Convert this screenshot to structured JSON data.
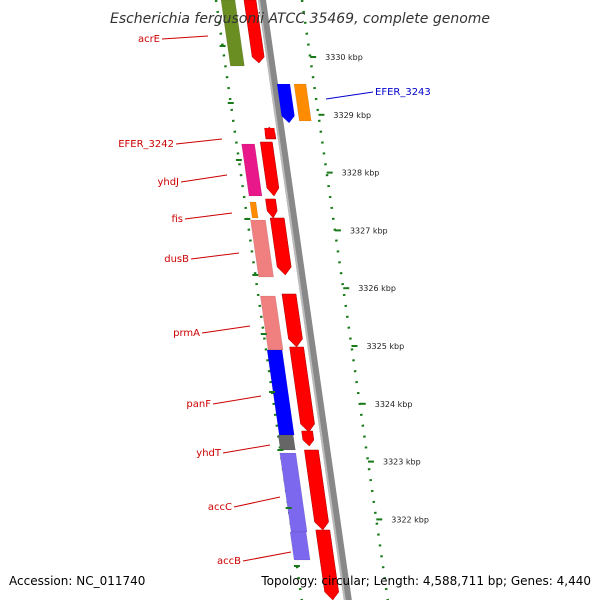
{
  "title": "Escherichia fergusonii ATCC 35469, complete genome",
  "footer": {
    "accession": "Accession: NC_011740",
    "topology": "Topology: circular; Length: 4,588,711 bp; Genes: 4,440"
  },
  "colors": {
    "backbone": "#888888",
    "tick": "#1a7a1a",
    "cds_arrow": "#ff0000",
    "label_red": "#cc0000",
    "label_blue": "#0000cc"
  },
  "scale_ticks": [
    {
      "label": "3330 kbp",
      "kbp": 3330
    },
    {
      "label": "3329 kbp",
      "kbp": 3329
    },
    {
      "label": "3328 kbp",
      "kbp": 3328
    },
    {
      "label": "3327 kbp",
      "kbp": 3327
    },
    {
      "label": "3326 kbp",
      "kbp": 3326
    },
    {
      "label": "3325 kbp",
      "kbp": 3325
    },
    {
      "label": "3324 kbp",
      "kbp": 3324
    },
    {
      "label": "3323 kbp",
      "kbp": 3323
    },
    {
      "label": "3322 kbp",
      "kbp": 3322
    }
  ],
  "genes": [
    {
      "name": "acrE",
      "color": "#6b8e23",
      "strand": "forward"
    },
    {
      "name": "EFER_3243",
      "color": "#ff8c00",
      "strand": "reverse"
    },
    {
      "name": "EFER_3242",
      "color": "#ff0000",
      "strand": "forward"
    },
    {
      "name": "yhdJ",
      "color": "#e8178a",
      "strand": "forward"
    },
    {
      "name": "fis",
      "color": "#ff8c00",
      "strand": "forward"
    },
    {
      "name": "dusB",
      "color": "#f08080",
      "strand": "forward"
    },
    {
      "name": "prmA",
      "color": "#f08080",
      "strand": "forward"
    },
    {
      "name": "panF",
      "color": "#0000ff",
      "strand": "forward"
    },
    {
      "name": "yhdT",
      "color": "#666666",
      "strand": "forward"
    },
    {
      "name": "accC",
      "color": "#7b68ee",
      "strand": "forward"
    },
    {
      "name": "accB",
      "color": "#7b68ee",
      "strand": "forward"
    }
  ]
}
